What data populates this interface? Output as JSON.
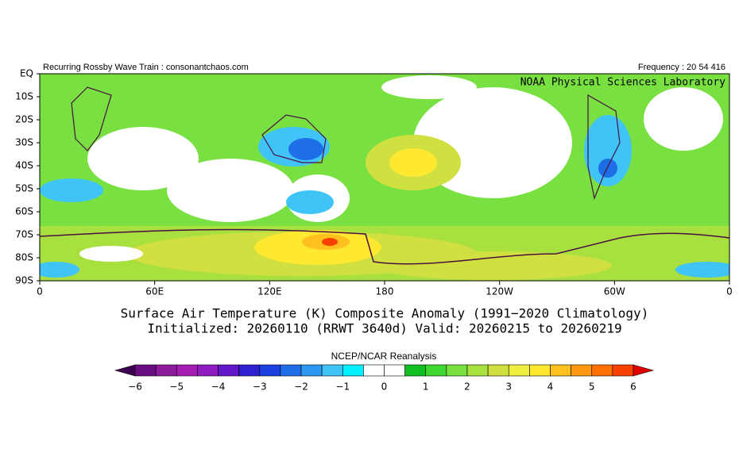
{
  "header": {
    "left": "Recurring Rossby Wave Train : consonantchaos.com",
    "right": "Frequency : 20 54 416",
    "credit": "NOAA Physical Sciences Laboratory"
  },
  "map": {
    "lat_labels": [
      "EQ",
      "10S",
      "20S",
      "30S",
      "40S",
      "50S",
      "60S",
      "70S",
      "80S",
      "90S"
    ],
    "lon_labels": [
      "0",
      "60E",
      "120E",
      "180",
      "120W",
      "60W",
      "0"
    ]
  },
  "title": {
    "line1": "Surface Air Temperature (K) Composite Anomaly (1991−2020 Climatology)",
    "line2": "Initialized: 20260110 (RRWT 3640d) Valid: 20260215 to 20260219"
  },
  "colorbar": {
    "label": "NCEP/NCAR Reanalysis",
    "ticks": [
      "−6",
      "−5",
      "−4",
      "−3",
      "−2",
      "−1",
      "0",
      "1",
      "2",
      "3",
      "4",
      "5",
      "6"
    ],
    "colors": [
      "#3c0050",
      "#6a0d80",
      "#8c1a9c",
      "#a41db0",
      "#901cc0",
      "#6018c8",
      "#3020d0",
      "#1c40e0",
      "#1e6ee8",
      "#2c98f0",
      "#40c4f8",
      "#00f0ff",
      "#ffffff",
      "#ffffff",
      "#10c020",
      "#40d830",
      "#78e040",
      "#a8e040",
      "#d0e040",
      "#f0f040",
      "#ffe830",
      "#ffc020",
      "#ff9a10",
      "#ff7000",
      "#f84000",
      "#e00000"
    ]
  }
}
